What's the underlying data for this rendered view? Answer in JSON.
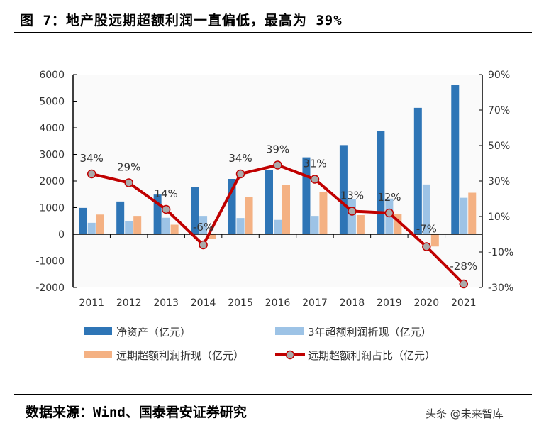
{
  "title": "图 7：地产股远期超额利润一直偏低，最高为 39%",
  "source": "数据来源：Wind、国泰君安证券研究",
  "watermark": "头条 @未来智库",
  "chart_data": {
    "type": "bar",
    "categories": [
      "2011",
      "2012",
      "2013",
      "2014",
      "2015",
      "2016",
      "2017",
      "2018",
      "2019",
      "2020",
      "2021"
    ],
    "ylim": [
      -2000,
      6000
    ],
    "yticks": [
      "6000",
      "5000",
      "4000",
      "3000",
      "2000",
      "1000",
      "0",
      "-1000",
      "-2000"
    ],
    "y2lim": [
      -30,
      90
    ],
    "y2ticks": [
      "90%",
      "70%",
      "50%",
      "30%",
      "10%",
      "-10%",
      "-30%"
    ],
    "series": [
      {
        "name": "净资产（亿元）",
        "type": "bar",
        "color": "#2E75B6",
        "values": [
          990,
          1230,
          1490,
          1780,
          2080,
          2410,
          2890,
          3350,
          3880,
          4750,
          5600
        ]
      },
      {
        "name": "3年超额利润折现（亿元）",
        "type": "bar",
        "color": "#9DC3E6",
        "values": [
          430,
          490,
          620,
          690,
          610,
          540,
          690,
          1320,
          1340,
          1870,
          1370
        ]
      },
      {
        "name": "远期超额利润折现（亿元）",
        "type": "bar",
        "color": "#F4B183",
        "values": [
          740,
          690,
          360,
          -180,
          1400,
          1860,
          1580,
          720,
          750,
          -460,
          1560
        ]
      },
      {
        "name": "远期超额利润占比（亿元）",
        "type": "line",
        "axis": "right",
        "color": "#C00000",
        "values": [
          34,
          29,
          14,
          -6,
          34,
          39,
          31,
          13,
          12,
          -7,
          -28
        ],
        "labels": [
          "34%",
          "29%",
          "14%",
          "-6%",
          "34%",
          "39%",
          "31%",
          "13%",
          "12%",
          "-7%",
          "-28%"
        ]
      }
    ]
  }
}
